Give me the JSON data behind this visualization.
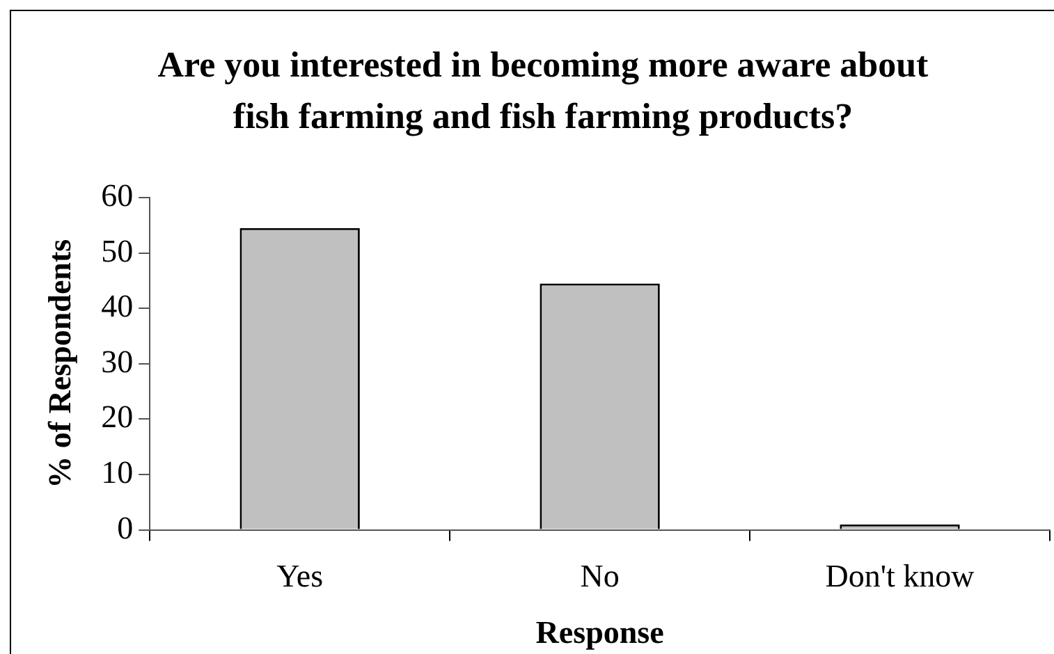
{
  "chart_data": {
    "type": "bar",
    "title": "Are you interested in becoming more aware about fish farming and fish farming products?",
    "xlabel": "Response",
    "ylabel": "% of Respondents",
    "categories": [
      "Yes",
      "No",
      "Don't know"
    ],
    "values": [
      54.5,
      44.5,
      1
    ],
    "color": "#c0c0c0",
    "ylim": [
      0,
      60
    ],
    "yticks": [
      0,
      10,
      20,
      30,
      40,
      50,
      60
    ],
    "grid": false,
    "legend": false
  }
}
